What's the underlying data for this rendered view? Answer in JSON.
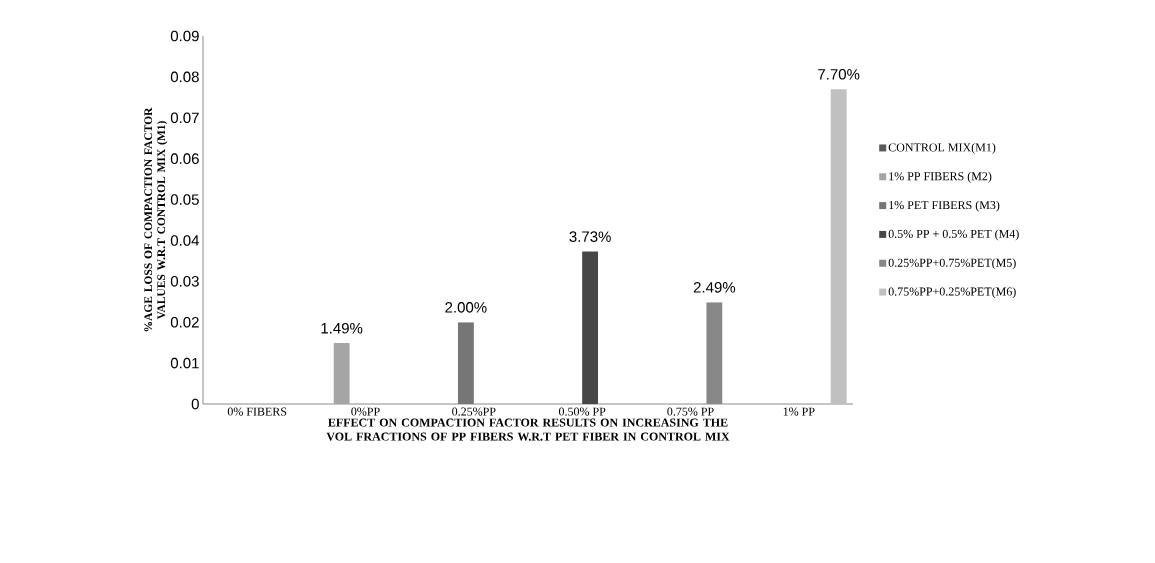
{
  "chart_data": {
    "type": "bar",
    "xlabel": "EFFECT ON COMPACTION FACTOR RESULTS  ON INCREASING THE VOL FRACTIONS OF PP FIBERS W.R.T  PET FIBER IN CONTROL MIX",
    "ylabel": "%AGE LOSS OF COMPACTION FACTOR VALUES W.R.T CONTROL MIX (M1)",
    "categories": [
      "0% FIBERS",
      "0%PP",
      "0.25%PP",
      "0.50% PP",
      "0.75% PP",
      "1% PP"
    ],
    "series": [
      {
        "name": "CONTROL MIX(M1)",
        "color": "#595959",
        "values": [
          0,
          null,
          null,
          null,
          null,
          null
        ],
        "value_labels": [
          null,
          null,
          null,
          null,
          null,
          null
        ]
      },
      {
        "name": "1% PP FIBERS (M2)",
        "color": "#a5a5a5",
        "values": [
          null,
          0.0149,
          null,
          null,
          null,
          null
        ],
        "value_labels": [
          null,
          "1.49%",
          null,
          null,
          null,
          null
        ]
      },
      {
        "name": "1% PET FIBERS (M3)",
        "color": "#767676",
        "values": [
          null,
          null,
          0.02,
          null,
          null,
          null
        ],
        "value_labels": [
          null,
          null,
          "2.00%",
          null,
          null,
          null
        ]
      },
      {
        "name": "0.5% PP + 0.5% PET (M4)",
        "color": "#474747",
        "values": [
          null,
          null,
          null,
          0.0373,
          null,
          null
        ],
        "value_labels": [
          null,
          null,
          null,
          "3.73%",
          null,
          null
        ]
      },
      {
        "name": "0.25%PP+0.75%PET(M5)",
        "color": "#888888",
        "values": [
          null,
          null,
          null,
          null,
          0.0249,
          null
        ],
        "value_labels": [
          null,
          null,
          null,
          null,
          "2.49%",
          null
        ]
      },
      {
        "name": "0.75%PP+0.25%PET(M6)",
        "color": "#c0c0c0",
        "values": [
          null,
          null,
          null,
          null,
          null,
          0.077
        ],
        "value_labels": [
          null,
          null,
          null,
          null,
          null,
          "7.70%"
        ]
      }
    ],
    "ylim": [
      0,
      0.09
    ],
    "yticks": [
      0,
      0.01,
      0.02,
      0.03,
      0.04,
      0.05,
      0.06,
      0.07,
      0.08,
      0.09
    ],
    "grid": false,
    "legend": "right"
  }
}
